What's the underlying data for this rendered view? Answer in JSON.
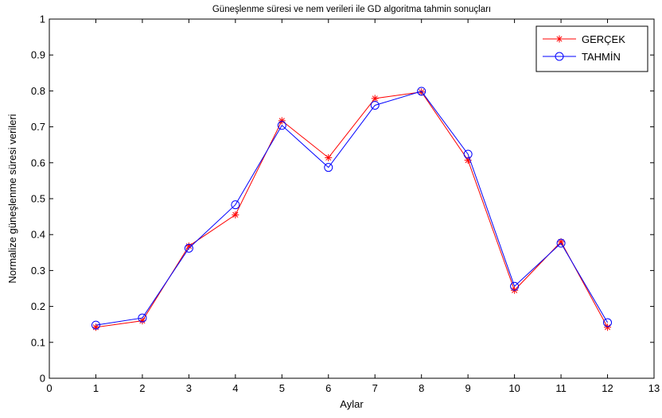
{
  "chart_data": {
    "type": "line",
    "title": "Güneşlenme süresi ve nem verileri ile GD algoritma  tahmin sonuçları",
    "xlabel": "Aylar",
    "ylabel": "Normalize güneşlenme süresi verileri",
    "xlim": [
      0,
      13
    ],
    "ylim": [
      0,
      1
    ],
    "xticks": [
      0,
      1,
      2,
      3,
      4,
      5,
      6,
      7,
      8,
      9,
      10,
      11,
      12,
      13
    ],
    "yticks": [
      0,
      0.1,
      0.2,
      0.3,
      0.4,
      0.5,
      0.6,
      0.7,
      0.8,
      0.9,
      1
    ],
    "grid": false,
    "legend_position": "top-right",
    "x": [
      1,
      2,
      3,
      4,
      5,
      6,
      7,
      8,
      9,
      10,
      11,
      12
    ],
    "series": [
      {
        "name": "GERÇEK",
        "color": "#ff0000",
        "marker": "asterisk",
        "values": [
          0.142,
          0.16,
          0.368,
          0.455,
          0.717,
          0.614,
          0.779,
          0.797,
          0.607,
          0.245,
          0.38,
          0.142
        ]
      },
      {
        "name": "TAHMİN",
        "color": "#0000ff",
        "marker": "circle",
        "values": [
          0.148,
          0.168,
          0.362,
          0.483,
          0.704,
          0.587,
          0.76,
          0.799,
          0.624,
          0.256,
          0.376,
          0.155
        ]
      }
    ]
  }
}
